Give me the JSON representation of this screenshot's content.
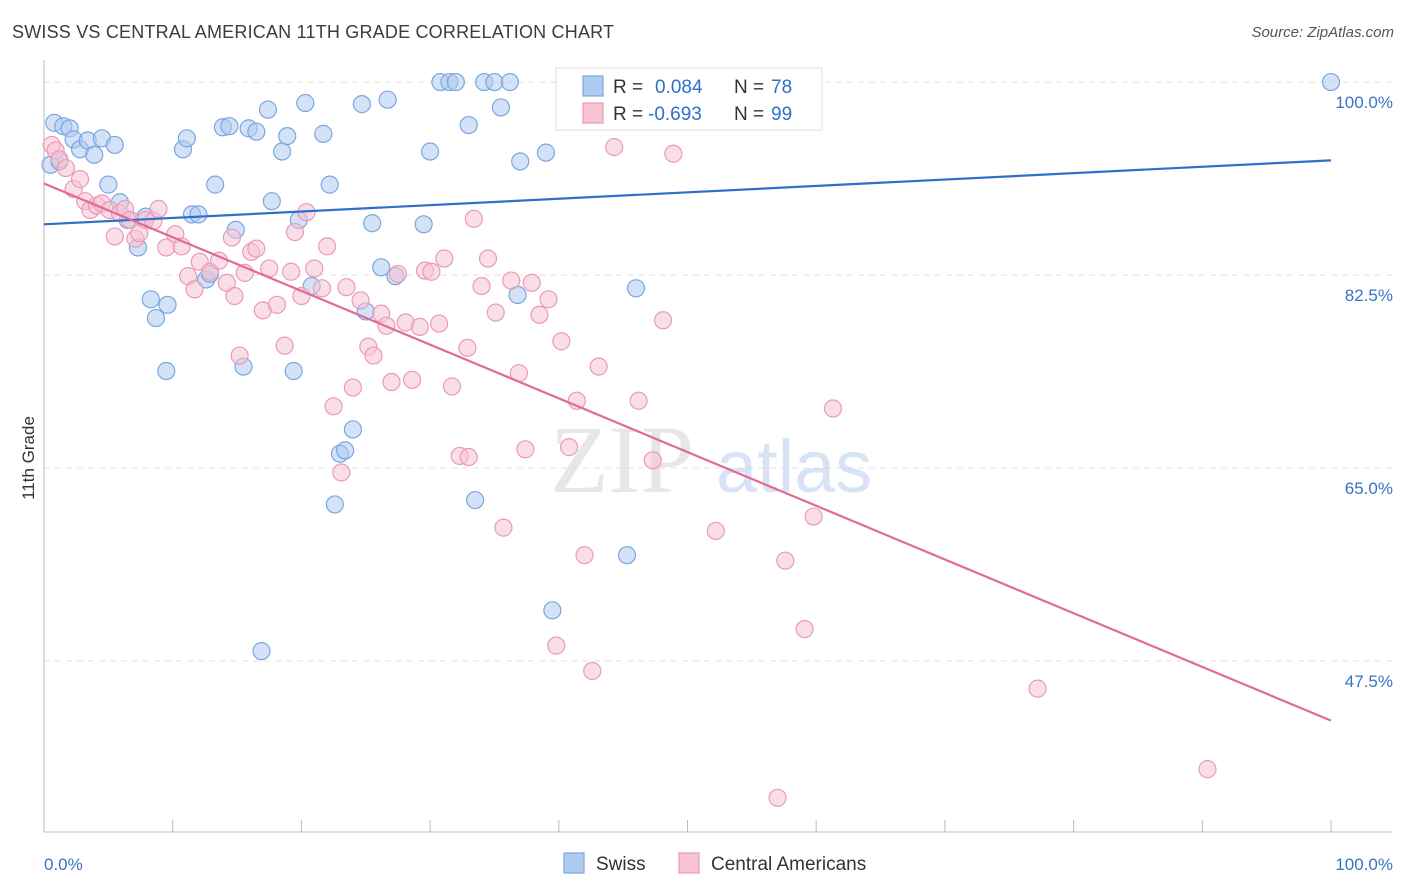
{
  "title": "SWISS VS CENTRAL AMERICAN 11TH GRADE CORRELATION CHART",
  "source": "Source: ZipAtlas.com",
  "watermark": {
    "zip": "ZIP",
    "atlas": "atlas"
  },
  "legend": {
    "r_label": "R =",
    "n_label": "N =",
    "rows": [
      {
        "r": "0.084",
        "n": "78"
      },
      {
        "r": "-0.693",
        "n": "99"
      }
    ]
  },
  "chart_data": {
    "type": "scatter",
    "xlabel": "",
    "ylabel": "11th Grade",
    "xlim": [
      0,
      100
    ],
    "ylim": [
      32,
      102
    ],
    "x_tick_labels": [
      "0.0%",
      "100.0%"
    ],
    "y_ticks": [
      100,
      82.5,
      65,
      47.5
    ],
    "y_tick_labels": [
      "100.0%",
      "82.5%",
      "65.0%",
      "47.5%"
    ],
    "grid": true,
    "legend_position": "top-center",
    "series": [
      {
        "name": "Swiss",
        "color": "#7aa7e0",
        "fill": "#aecbf0",
        "trend": {
          "color": "#2f6fc9",
          "x": [
            0,
            100
          ],
          "y": [
            87.1,
            92.9
          ]
        },
        "points": [
          [
            0.5,
            92.5
          ],
          [
            0.8,
            96.3
          ],
          [
            1.2,
            92.8
          ],
          [
            1.5,
            96.0
          ],
          [
            2.0,
            95.8
          ],
          [
            2.3,
            94.8
          ],
          [
            2.8,
            93.9
          ],
          [
            3.4,
            94.7
          ],
          [
            3.9,
            93.4
          ],
          [
            4.5,
            94.9
          ],
          [
            5.0,
            90.7
          ],
          [
            5.5,
            94.3
          ],
          [
            5.9,
            89.1
          ],
          [
            6.5,
            87.5
          ],
          [
            7.3,
            85.0
          ],
          [
            7.9,
            87.8
          ],
          [
            8.3,
            80.3
          ],
          [
            8.7,
            78.6
          ],
          [
            9.6,
            79.8
          ],
          [
            10.8,
            93.9
          ],
          [
            11.1,
            94.9
          ],
          [
            9.5,
            73.8
          ],
          [
            11.5,
            88.0
          ],
          [
            12.0,
            88.0
          ],
          [
            12.6,
            82.1
          ],
          [
            12.9,
            82.6
          ],
          [
            13.3,
            90.7
          ],
          [
            13.9,
            95.9
          ],
          [
            14.4,
            96.0
          ],
          [
            14.9,
            86.6
          ],
          [
            15.5,
            74.2
          ],
          [
            15.9,
            95.8
          ],
          [
            16.5,
            95.5
          ],
          [
            16.9,
            48.4
          ],
          [
            17.4,
            97.5
          ],
          [
            17.7,
            89.2
          ],
          [
            18.5,
            93.7
          ],
          [
            18.9,
            95.1
          ],
          [
            19.4,
            73.8
          ],
          [
            19.8,
            87.5
          ],
          [
            20.3,
            98.1
          ],
          [
            20.8,
            81.5
          ],
          [
            21.7,
            95.3
          ],
          [
            22.2,
            90.7
          ],
          [
            22.6,
            61.7
          ],
          [
            23.0,
            66.3
          ],
          [
            23.4,
            66.6
          ],
          [
            24.0,
            68.5
          ],
          [
            24.7,
            98.0
          ],
          [
            25.0,
            79.2
          ],
          [
            25.5,
            87.2
          ],
          [
            26.2,
            83.2
          ],
          [
            26.7,
            98.4
          ],
          [
            27.3,
            82.4
          ],
          [
            29.5,
            87.1
          ],
          [
            30.0,
            93.7
          ],
          [
            30.8,
            100.0
          ],
          [
            31.5,
            100.0
          ],
          [
            32.0,
            100.0
          ],
          [
            33.0,
            96.1
          ],
          [
            33.5,
            62.1
          ],
          [
            34.2,
            100.0
          ],
          [
            35.0,
            100.0
          ],
          [
            35.5,
            97.7
          ],
          [
            36.2,
            100.0
          ],
          [
            36.8,
            80.7
          ],
          [
            37.0,
            92.8
          ],
          [
            39.0,
            93.6
          ],
          [
            39.5,
            52.1
          ],
          [
            41.0,
            100.0
          ],
          [
            42.0,
            100.0
          ],
          [
            43.5,
            100.0
          ],
          [
            45.0,
            100.0
          ],
          [
            45.3,
            57.1
          ],
          [
            46.0,
            81.3
          ],
          [
            47.0,
            100.0
          ],
          [
            50.0,
            100.0
          ],
          [
            100.0,
            100.0
          ]
        ]
      },
      {
        "name": "Central Americans",
        "color": "#ec9ab4",
        "fill": "#f6c3d3",
        "trend": {
          "color": "#e06a96",
          "x": [
            0,
            100
          ],
          "y": [
            90.8,
            42.1
          ]
        },
        "points": [
          [
            0.6,
            94.3
          ],
          [
            0.9,
            93.8
          ],
          [
            1.2,
            93.0
          ],
          [
            1.7,
            92.2
          ],
          [
            2.3,
            90.3
          ],
          [
            2.8,
            91.2
          ],
          [
            3.2,
            89.2
          ],
          [
            3.6,
            88.4
          ],
          [
            4.1,
            88.8
          ],
          [
            4.5,
            89.0
          ],
          [
            5.1,
            88.4
          ],
          [
            5.5,
            86.0
          ],
          [
            5.9,
            88.1
          ],
          [
            6.3,
            88.5
          ],
          [
            6.7,
            87.5
          ],
          [
            7.1,
            85.8
          ],
          [
            7.4,
            86.3
          ],
          [
            7.9,
            87.5
          ],
          [
            8.5,
            87.4
          ],
          [
            8.9,
            88.5
          ],
          [
            9.5,
            85.0
          ],
          [
            10.2,
            86.2
          ],
          [
            10.7,
            85.1
          ],
          [
            11.2,
            82.4
          ],
          [
            11.7,
            81.2
          ],
          [
            12.1,
            83.7
          ],
          [
            12.9,
            82.8
          ],
          [
            13.6,
            83.8
          ],
          [
            14.2,
            81.8
          ],
          [
            14.8,
            80.6
          ],
          [
            15.2,
            75.2
          ],
          [
            15.6,
            82.7
          ],
          [
            16.1,
            84.6
          ],
          [
            16.5,
            84.9
          ],
          [
            17.0,
            79.3
          ],
          [
            17.5,
            83.1
          ],
          [
            18.1,
            79.8
          ],
          [
            18.7,
            76.1
          ],
          [
            19.2,
            82.8
          ],
          [
            19.5,
            86.4
          ],
          [
            20.0,
            80.6
          ],
          [
            20.4,
            88.2
          ],
          [
            21.0,
            83.1
          ],
          [
            21.6,
            81.3
          ],
          [
            22.0,
            85.1
          ],
          [
            22.5,
            70.6
          ],
          [
            23.1,
            64.6
          ],
          [
            23.5,
            81.4
          ],
          [
            24.0,
            72.3
          ],
          [
            24.6,
            80.2
          ],
          [
            25.2,
            76.0
          ],
          [
            25.6,
            75.2
          ],
          [
            26.2,
            79.0
          ],
          [
            26.6,
            77.9
          ],
          [
            27.0,
            72.8
          ],
          [
            27.5,
            82.6
          ],
          [
            28.1,
            78.2
          ],
          [
            28.6,
            73.0
          ],
          [
            29.2,
            77.8
          ],
          [
            29.6,
            82.9
          ],
          [
            30.1,
            82.8
          ],
          [
            30.7,
            78.1
          ],
          [
            31.1,
            84.0
          ],
          [
            31.7,
            72.4
          ],
          [
            32.3,
            66.1
          ],
          [
            32.9,
            75.9
          ],
          [
            33.4,
            87.6
          ],
          [
            34.0,
            81.5
          ],
          [
            34.5,
            84.0
          ],
          [
            35.1,
            79.1
          ],
          [
            35.7,
            59.6
          ],
          [
            36.3,
            82.0
          ],
          [
            36.9,
            73.6
          ],
          [
            37.4,
            66.7
          ],
          [
            37.9,
            81.8
          ],
          [
            38.5,
            78.9
          ],
          [
            39.2,
            80.3
          ],
          [
            39.8,
            48.9
          ],
          [
            40.2,
            76.5
          ],
          [
            40.8,
            66.9
          ],
          [
            41.4,
            71.1
          ],
          [
            42.0,
            57.1
          ],
          [
            42.6,
            46.6
          ],
          [
            43.1,
            74.2
          ],
          [
            44.3,
            94.1
          ],
          [
            46.2,
            71.1
          ],
          [
            47.3,
            65.7
          ],
          [
            48.1,
            78.4
          ],
          [
            48.9,
            93.5
          ],
          [
            52.2,
            59.3
          ],
          [
            57.6,
            56.6
          ],
          [
            59.1,
            50.4
          ],
          [
            59.8,
            60.6
          ],
          [
            61.3,
            70.4
          ],
          [
            77.2,
            45.0
          ],
          [
            90.4,
            37.7
          ],
          [
            57.0,
            35.1
          ],
          [
            33.0,
            66.0
          ],
          [
            14.6,
            85.9
          ]
        ]
      }
    ]
  }
}
